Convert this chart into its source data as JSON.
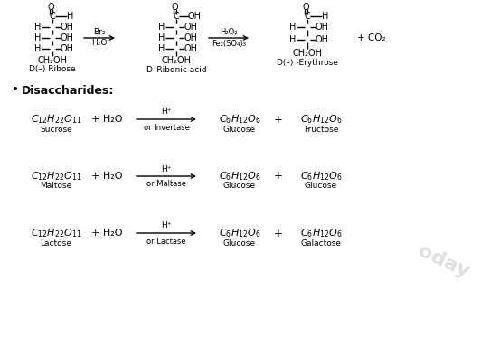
{
  "bg_color": "#ffffff",
  "fig_width": 5.32,
  "fig_height": 3.73,
  "dpi": 100,
  "reactions": [
    {
      "reactant_name": "Sucrose",
      "reagent_bot": "or Invertase",
      "product1_name": "Glucose",
      "product2_name": "Fructose"
    },
    {
      "reactant_name": "Maltose",
      "reagent_bot": "or Maltase",
      "product1_name": "Glucose",
      "product2_name": "Glucose"
    },
    {
      "reactant_name": "Lactose",
      "reagent_bot": "or Lactase",
      "product1_name": "Glucose",
      "product2_name": "Galactose"
    }
  ]
}
